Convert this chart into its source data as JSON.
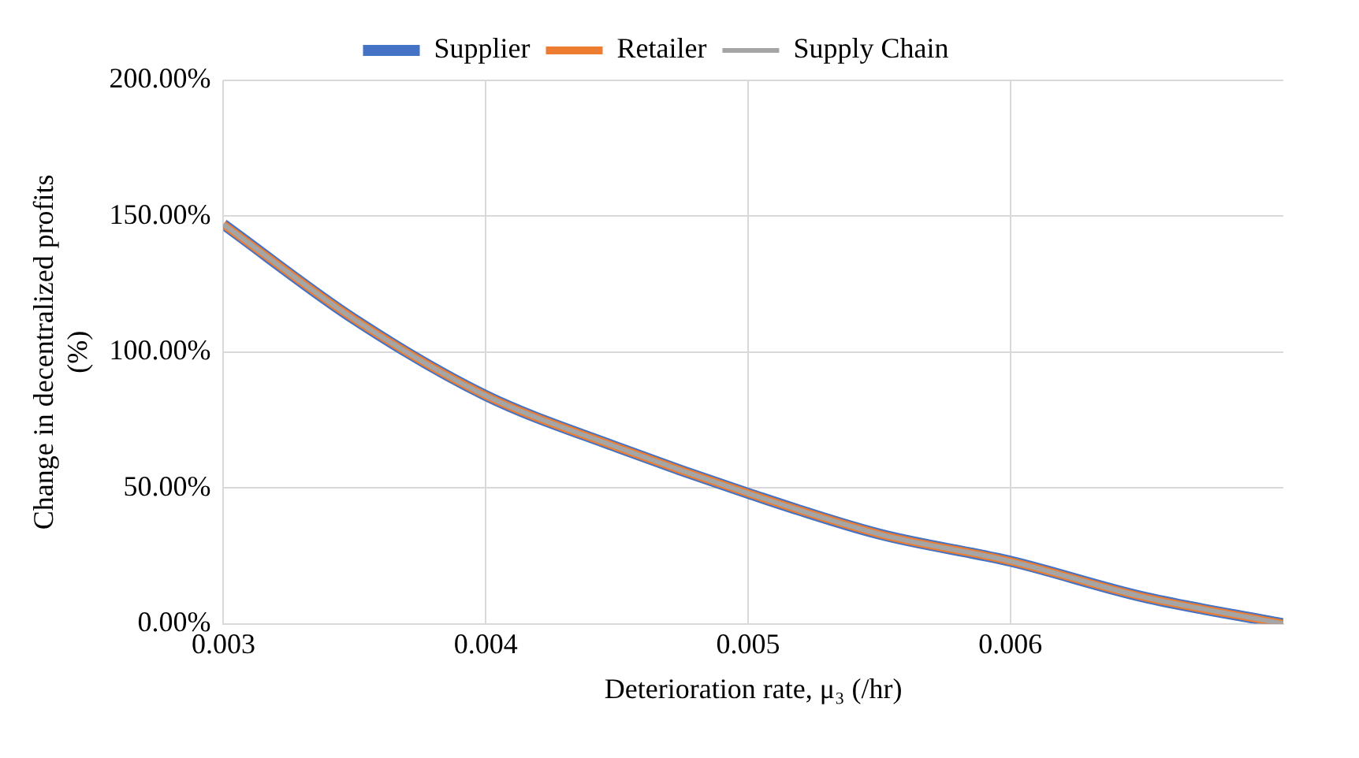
{
  "chart_data": {
    "type": "line",
    "xlabel": "Deterioration rate, μ₃ (/hr)",
    "ylabel": "Change in decentralized profits (%)",
    "x": [
      0.003,
      0.0035,
      0.004,
      0.0045,
      0.005,
      0.0055,
      0.006,
      0.0065,
      0.00704
    ],
    "series": [
      {
        "name": "Supplier",
        "color": "#4472c4",
        "values": [
          147,
          112,
          84,
          65,
          48,
          33,
          23,
          10,
          0
        ]
      },
      {
        "name": "Retailer",
        "color": "#ed7d31",
        "values": [
          147,
          112,
          84,
          65,
          48,
          33,
          23,
          10,
          0
        ]
      },
      {
        "name": "Supply Chain",
        "color": "#a5a5a5",
        "values": [
          147,
          112,
          84,
          65,
          48,
          33,
          23,
          10,
          0
        ]
      }
    ],
    "xlim": [
      0.003,
      0.00704
    ],
    "xticks": [
      0.003,
      0.004,
      0.005,
      0.006
    ],
    "ylim": [
      0,
      200
    ],
    "yticks": [
      {
        "value": 0,
        "label": "0.00%"
      },
      {
        "value": 50,
        "label": "50.00%"
      },
      {
        "value": 100,
        "label": "100.00%"
      },
      {
        "value": 150,
        "label": "150.00%"
      },
      {
        "value": 200,
        "label": "200.00%"
      }
    ],
    "grid": true,
    "legend": "top",
    "marker": "none",
    "line_style": "solid"
  }
}
